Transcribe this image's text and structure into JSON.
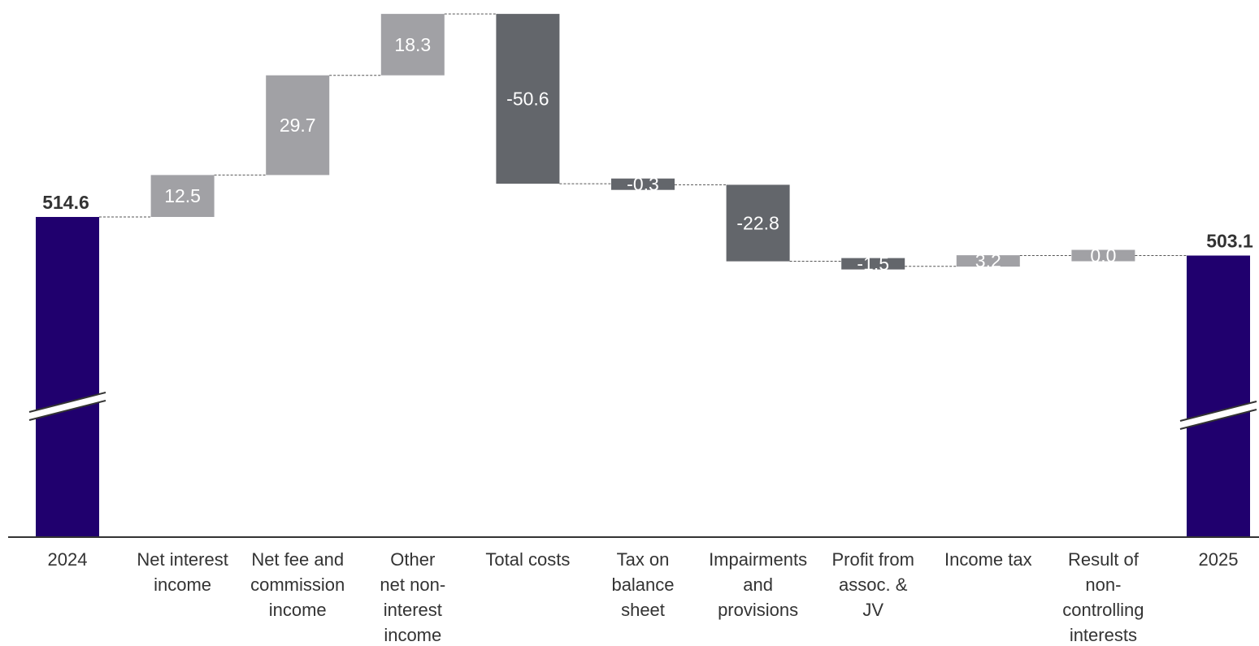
{
  "chart_data": {
    "type": "waterfall",
    "title": "",
    "xlabel": "",
    "ylabel": "",
    "axis_break": true,
    "start": {
      "label": "2024",
      "value": 514.6,
      "value_label": "514.6"
    },
    "end": {
      "label": "2025",
      "value": 503.1,
      "value_label": "503.1"
    },
    "steps": [
      {
        "label": [
          "Net interest",
          "income"
        ],
        "value": 12.5,
        "value_label": "12.5"
      },
      {
        "label": [
          "Net fee and",
          "commission",
          "income"
        ],
        "value": 29.7,
        "value_label": "29.7"
      },
      {
        "label": [
          "Other",
          "net non-",
          "interest",
          "income"
        ],
        "value": 18.3,
        "value_label": "18.3"
      },
      {
        "label": [
          "Total costs"
        ],
        "value": -50.6,
        "value_label": "-50.6"
      },
      {
        "label": [
          "Tax on",
          "balance",
          "sheet"
        ],
        "value": -0.3,
        "value_label": "-0.3"
      },
      {
        "label": [
          "Impairments",
          "and",
          "provisions"
        ],
        "value": -22.8,
        "value_label": "-22.8"
      },
      {
        "label": [
          "Profit from",
          "assoc. &",
          "JV"
        ],
        "value": -1.5,
        "value_label": "-1.5"
      },
      {
        "label": [
          "Income tax"
        ],
        "value": 3.2,
        "value_label": "3.2"
      },
      {
        "label": [
          "Result of",
          "non-",
          "controlling",
          "interests"
        ],
        "value": 0.0,
        "value_label": "0.0"
      }
    ],
    "colors": {
      "total": "#20006e",
      "increase": "#a1a1a5",
      "decrease": "#63666b",
      "connector": "#555555",
      "axis": "#333333"
    }
  }
}
